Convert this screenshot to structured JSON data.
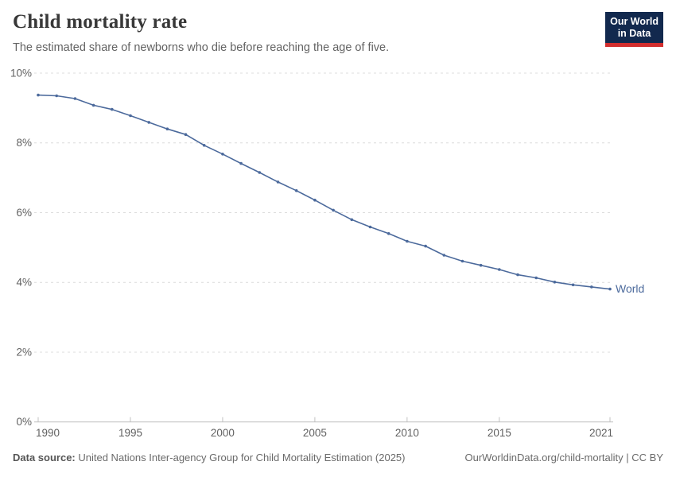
{
  "header": {
    "title": "Child mortality rate",
    "subtitle": "The estimated share of newborns who die before reaching the age of five.",
    "logo": {
      "line1": "Our World",
      "line2": "in Data",
      "bg_color": "#12294e",
      "accent_color": "#d22e2e"
    }
  },
  "chart_data": {
    "type": "line",
    "title": "Child mortality rate",
    "xlabel": "",
    "ylabel": "",
    "x": [
      1990,
      1991,
      1992,
      1993,
      1994,
      1995,
      1996,
      1997,
      1998,
      1999,
      2000,
      2001,
      2002,
      2003,
      2004,
      2005,
      2006,
      2007,
      2008,
      2009,
      2010,
      2011,
      2012,
      2013,
      2014,
      2015,
      2016,
      2017,
      2018,
      2019,
      2020,
      2021
    ],
    "series": [
      {
        "name": "World",
        "color": "#4c6a9c",
        "values": [
          9.37,
          9.35,
          9.27,
          9.08,
          8.96,
          8.78,
          8.59,
          8.4,
          8.24,
          7.93,
          7.68,
          7.41,
          7.15,
          6.88,
          6.63,
          6.36,
          6.07,
          5.8,
          5.59,
          5.4,
          5.18,
          5.04,
          4.78,
          4.61,
          4.49,
          4.37,
          4.22,
          4.13,
          4.01,
          3.93,
          3.87,
          3.81
        ]
      }
    ],
    "xlim": [
      1990,
      2021
    ],
    "ylim": [
      0,
      10
    ],
    "x_ticks": [
      1990,
      1995,
      2000,
      2005,
      2010,
      2015,
      2021
    ],
    "y_ticks": [
      0,
      2,
      4,
      6,
      8,
      10
    ],
    "y_tick_labels": [
      "0%",
      "2%",
      "4%",
      "6%",
      "8%",
      "10%"
    ],
    "grid": "horizontal-dashed",
    "legend_position": "end-of-line",
    "grid_color": "#dcdcdc",
    "axis_color": "#c0c0c0",
    "tick_label_color": "#616161"
  },
  "footer": {
    "datasource_label": "Data source:",
    "datasource_text": " United Nations Inter-agency Group for Child Mortality Estimation (2025)",
    "link_text": "OurWorldinData.org/child-mortality | CC BY"
  }
}
